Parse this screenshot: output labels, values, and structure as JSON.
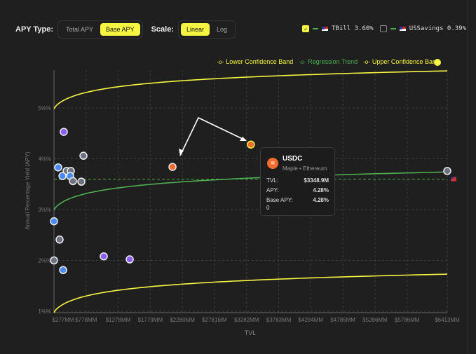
{
  "controls": {
    "apy_type_label": "APY Type:",
    "apy_options": [
      "Total APY",
      "Base APY"
    ],
    "apy_selected": 1,
    "scale_label": "Scale:",
    "scale_options": [
      "Linear",
      "Log"
    ],
    "scale_selected": 0
  },
  "benchmarks": [
    {
      "label": "TBill 3.60%",
      "checked": true,
      "check": "✓"
    },
    {
      "label": "USSavings 0.39%",
      "checked": false
    }
  ],
  "legend": [
    "Lower Confidence Band",
    "Regression Trend",
    "Upper Confidence Band"
  ],
  "tooltip": {
    "icon": "≋",
    "title": "USDC",
    "subtitle": "Maple • Ethereum",
    "rows": [
      {
        "k": "TVL:",
        "v": "$3348.9M"
      },
      {
        "k": "APY:",
        "v": "4.28%"
      },
      {
        "k": "Base APY:",
        "v": "4.28%"
      }
    ],
    "extra": "0"
  },
  "colors": {
    "upper": "#f5f542",
    "lower": "#f5f542",
    "trend": "#4caf50",
    "tbill": "#4caf50",
    "grid": "#3c3c3c"
  },
  "chart_data": {
    "type": "scatter",
    "xlabel": "TVL",
    "ylabel": "Annual Percentage Yield (APY)",
    "xlim": [
      277,
      6413
    ],
    "ylim": [
      0.97,
      5.75
    ],
    "xticks": [
      277,
      778,
      1278,
      1779,
      2280,
      2781,
      3282,
      3783,
      4284,
      4785,
      5286,
      5786,
      6413
    ],
    "xtick_labels": [
      "$277MM",
      "$778MM",
      "$1278MM",
      "$1779MM",
      "$2280MM",
      "$2781MM",
      "$3282MM",
      "$3783MM",
      "$4284MM",
      "$4785MM",
      "$5286MM",
      "$5786MM",
      "$6413MM"
    ],
    "yticks": [
      1,
      2,
      3,
      4,
      5
    ],
    "ytick_labels": [
      "1%%",
      "2%%",
      "3%%",
      "4%%",
      "5%%"
    ],
    "tbill": 3.6,
    "bands": {
      "upper": [
        4.98,
        5.73
      ],
      "trend": [
        2.99,
        3.74
      ],
      "lower": [
        0.97,
        1.73
      ]
    },
    "points": [
      {
        "x": 430,
        "y": 4.53,
        "c": "#8b5cf6"
      },
      {
        "x": 737,
        "y": 4.06,
        "c": "#6b7280"
      },
      {
        "x": 343,
        "y": 3.83,
        "c": "#4a8af4"
      },
      {
        "x": 474,
        "y": 3.76,
        "c": "#6b7280"
      },
      {
        "x": 540,
        "y": 3.76,
        "c": "#6b7280"
      },
      {
        "x": 409,
        "y": 3.66,
        "c": "#4a8af4"
      },
      {
        "x": 529,
        "y": 3.66,
        "c": "#4a8af4"
      },
      {
        "x": 573,
        "y": 3.56,
        "c": "#6b7280"
      },
      {
        "x": 704,
        "y": 3.55,
        "c": "#6b7280"
      },
      {
        "x": 2126,
        "y": 3.84,
        "c": "#f26b2c"
      },
      {
        "x": 3349,
        "y": 4.28,
        "c": "#f26b2c",
        "highlight": true
      },
      {
        "x": 6413,
        "y": 3.76,
        "c": "#6b7280"
      },
      {
        "x": 277,
        "y": 2.77,
        "c": "#4a8af4"
      },
      {
        "x": 365,
        "y": 2.41,
        "c": "#6b7280"
      },
      {
        "x": 1054,
        "y": 2.08,
        "c": "#8b5cf6"
      },
      {
        "x": 1459,
        "y": 2.02,
        "c": "#8b5cf6"
      },
      {
        "x": 277,
        "y": 2.0,
        "c": "#6b7280"
      },
      {
        "x": 420,
        "y": 1.81,
        "c": "#4a8af4"
      }
    ]
  }
}
